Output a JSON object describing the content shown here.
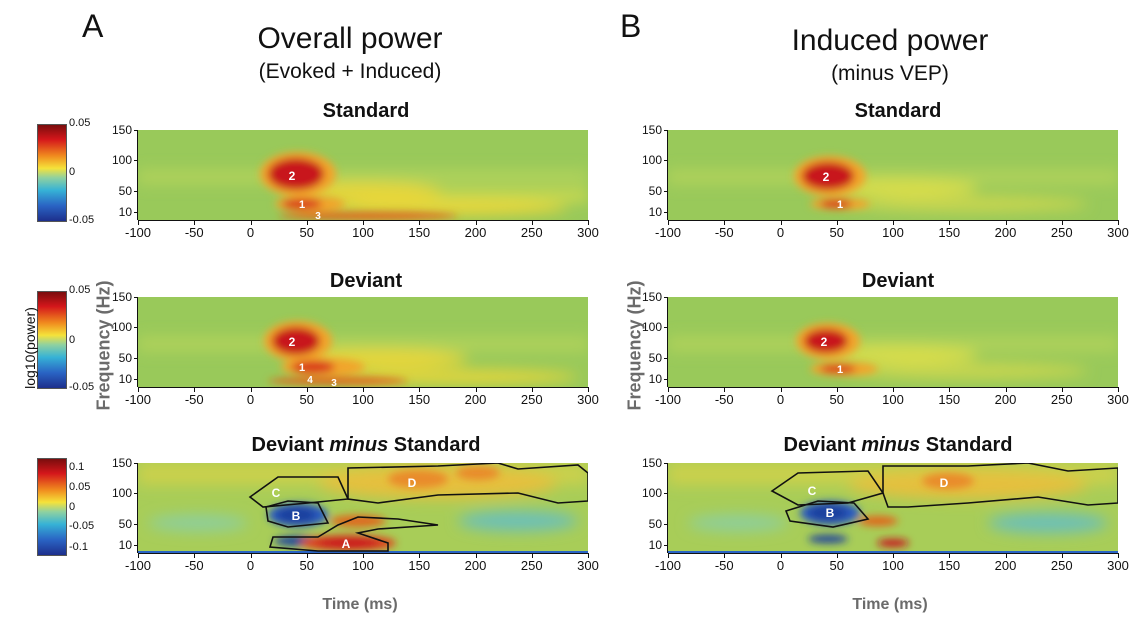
{
  "panels": {
    "A": {
      "letter": "A",
      "title": "Overall power",
      "subtitle": "(Evoked + Induced)"
    },
    "B": {
      "letter": "B",
      "title": "Induced power",
      "subtitle": "(minus VEP)"
    }
  },
  "rows": {
    "standard": "Standard",
    "deviant": "Deviant",
    "diff_pre": "Deviant ",
    "diff_em": "minus",
    "diff_post": " Standard"
  },
  "axes": {
    "ylabel": "Frequency (Hz)",
    "xlabel": "Time (ms)",
    "cbar_label": "log10(power)",
    "x_ticks": [
      "-100",
      "-50",
      "0",
      "50",
      "100",
      "150",
      "200",
      "250",
      "300"
    ],
    "y_ticks": [
      "150",
      "100",
      "50",
      "10"
    ]
  },
  "colorbars": [
    {
      "max": "0.05",
      "mid": "0",
      "min": "-0.05"
    },
    {
      "max": "0.05",
      "mid": "0",
      "min": "-0.05"
    },
    {
      "max": "0.1",
      "q1": "0.05",
      "mid": "0",
      "q3": "-0.05",
      "min": "-0.1"
    }
  ],
  "labels": {
    "a_std": [
      "2",
      "1",
      "3"
    ],
    "a_dev": [
      "2",
      "1",
      "4",
      "3"
    ],
    "a_diff": [
      "C",
      "D",
      "B",
      "A"
    ],
    "b_std": [
      "2",
      "1"
    ],
    "b_dev": [
      "2",
      "1"
    ],
    "b_diff": [
      "C",
      "D",
      "B"
    ]
  },
  "colors": {
    "bg": "#99c95a",
    "yellow": "#e6d63a",
    "red": "#c8141a",
    "blue": "#1c3f9e",
    "cyan": "#4fb6c9"
  }
}
